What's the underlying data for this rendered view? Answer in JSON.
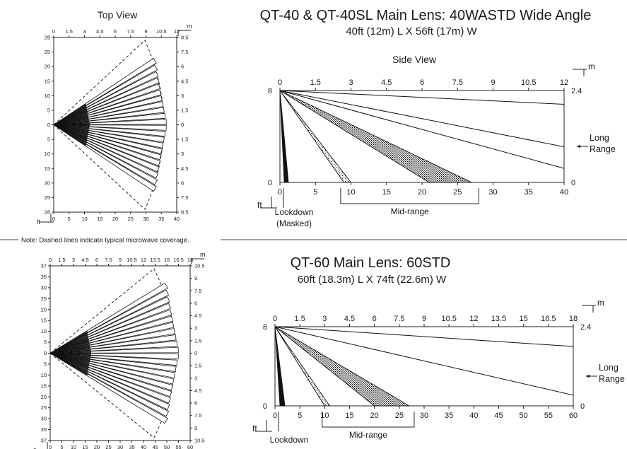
{
  "top": {
    "title": "QT-40 & QT-40SL Main Lens:  40WASTD Wide Angle",
    "subtitle": "40ft (12m) L  X  56ft (17m) W",
    "top_view_label": "Top View",
    "side_view_label": "Side View",
    "top_view": {
      "x_m_ticks": [
        "0",
        "1.5",
        "3",
        "4.5",
        "6",
        "7.5",
        "9",
        "10.5",
        "12"
      ],
      "x_ft_ticks": [
        "0",
        "5",
        "10",
        "15",
        "20",
        "25",
        "30",
        "35",
        "40"
      ],
      "y_ft_ticks": [
        "28",
        "25",
        "20",
        "15",
        "10",
        "5",
        "0",
        "5",
        "10",
        "15",
        "20",
        "25",
        "28"
      ],
      "y_m_ticks": [
        "8.5",
        "7.5",
        "6",
        "4.5",
        "3",
        "1.5",
        "0",
        "1.5",
        "3",
        "4.5",
        "6",
        "7.5",
        "8.5"
      ],
      "unit_m": "m",
      "unit_ft": "ft",
      "x_ft_max": 40,
      "y_ft_half": 28,
      "beams": 22,
      "beam_reach_ft": 40,
      "spread_ratio": 0.96
    },
    "side_view": {
      "x_m_ticks": [
        "0",
        "1.5",
        "3",
        "4.5",
        "6",
        "7.5",
        "9",
        "10.5",
        "12"
      ],
      "x_ft_ticks": [
        "0",
        "5",
        "10",
        "15",
        "20",
        "25",
        "30",
        "35",
        "40"
      ],
      "height_ft_label": "8",
      "ground_ft_label": "0",
      "height_m_label": "2.4",
      "ground_m_label": "0",
      "unit_m": "m",
      "unit_ft": "ft",
      "x_ft_max": 40,
      "long_range_label": "Long Range",
      "lookdown_label": "Lookdown",
      "lookdown_sub_label": "(Masked)",
      "midrange_label": "Mid-range",
      "long_range_end_ft": 6.8,
      "mid_upper_end_ft": 3.1,
      "mid_dense_ft": [
        21,
        27
      ],
      "mid_sparse_ft": [
        9,
        10
      ],
      "lookdown_ft": [
        0.6,
        1.2
      ]
    }
  },
  "note": "Note:  Dashed lines indicate typical microwave coverage.",
  "bottom": {
    "title": "QT-60 Main Lens:  60STD",
    "subtitle": "60ft (18.3m) L  X  74ft (22.6m) W",
    "top_view": {
      "x_m_ticks": [
        "0",
        "1.5",
        "3",
        "4.5",
        "6",
        "7.5",
        "9",
        "10.5",
        "12",
        "13.5",
        "15",
        "16.5",
        "18"
      ],
      "x_ft_ticks": [
        "0",
        "5",
        "10",
        "15",
        "20",
        "25",
        "30",
        "35",
        "40",
        "45",
        "50",
        "55",
        "60"
      ],
      "y_ft_ticks": [
        "37",
        "35",
        "30",
        "25",
        "20",
        "15",
        "10",
        "5",
        "0",
        "5",
        "10",
        "15",
        "20",
        "25",
        "30",
        "35",
        "37"
      ],
      "y_m_ticks": [
        "10.5",
        "9",
        "7.5",
        "6",
        "4.5",
        "3",
        "1.5",
        "0",
        "1.5",
        "3",
        "4.5",
        "6",
        "7.5",
        "9",
        "10.5"
      ],
      "unit_m": "m",
      "unit_ft": "ft",
      "x_ft_max": 60,
      "y_ft_half": 37,
      "beams": 22,
      "beam_reach_ft": 60,
      "spread_ratio": 1.0
    },
    "side_view": {
      "x_m_ticks": [
        "0",
        "1.5",
        "3",
        "4.5",
        "6",
        "7.5",
        "9",
        "10.5",
        "12",
        "13.5",
        "15",
        "16.5",
        "18"
      ],
      "x_ft_ticks": [
        "0",
        "5",
        "10",
        "15",
        "20",
        "25",
        "30",
        "35",
        "40",
        "45",
        "50",
        "55",
        "60"
      ],
      "height_ft_label": "8",
      "ground_ft_label": "0",
      "height_m_label": "2.4",
      "ground_m_label": "0",
      "unit_m": "m",
      "unit_ft": "ft",
      "x_ft_max": 60,
      "long_range_label": "Long Range",
      "lookdown_label": "Lookdown",
      "midrange_label": "Mid-range",
      "long_range_end_ft": 6.0,
      "mid_upper_end_ft": 0,
      "mid_dense_ft": [
        20,
        27
      ],
      "mid_sparse_ft": [
        10,
        11
      ],
      "lookdown_ft": [
        1.0,
        2.0
      ]
    }
  }
}
